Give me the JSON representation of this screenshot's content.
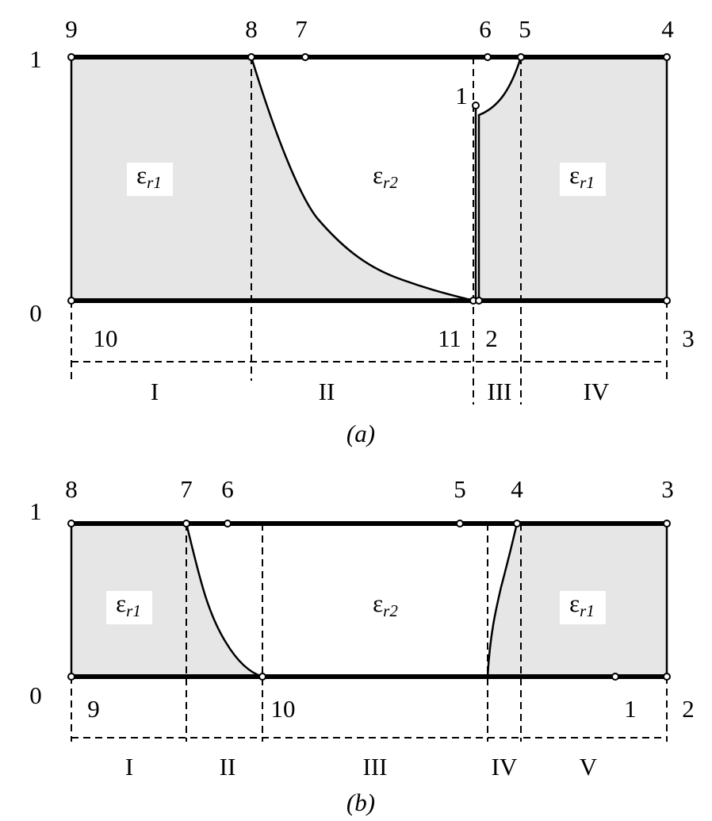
{
  "panels": [
    {
      "caption": "(a)",
      "axis_labels": [
        "1",
        "0"
      ],
      "point_labels": [
        "9",
        "8",
        "7",
        "6",
        "5",
        "4",
        "1",
        "10",
        "11",
        "2",
        "3"
      ],
      "regions": [
        "I",
        "II",
        "III",
        "IV"
      ],
      "materials": [
        {
          "symbol": "ε",
          "subscript": "r1"
        },
        {
          "symbol": "ε",
          "subscript": "r2"
        },
        {
          "symbol": "ε",
          "subscript": "r1"
        }
      ]
    },
    {
      "caption": "(b)",
      "axis_labels": [
        "1",
        "0"
      ],
      "point_labels": [
        "8",
        "7",
        "6",
        "5",
        "4",
        "3",
        "9",
        "10",
        "1",
        "2"
      ],
      "regions": [
        "I",
        "II",
        "III",
        "IV",
        "V"
      ],
      "materials": [
        {
          "symbol": "ε",
          "subscript": "r1"
        },
        {
          "symbol": "ε",
          "subscript": "r2"
        },
        {
          "symbol": "ε",
          "subscript": "r1"
        }
      ]
    }
  ]
}
